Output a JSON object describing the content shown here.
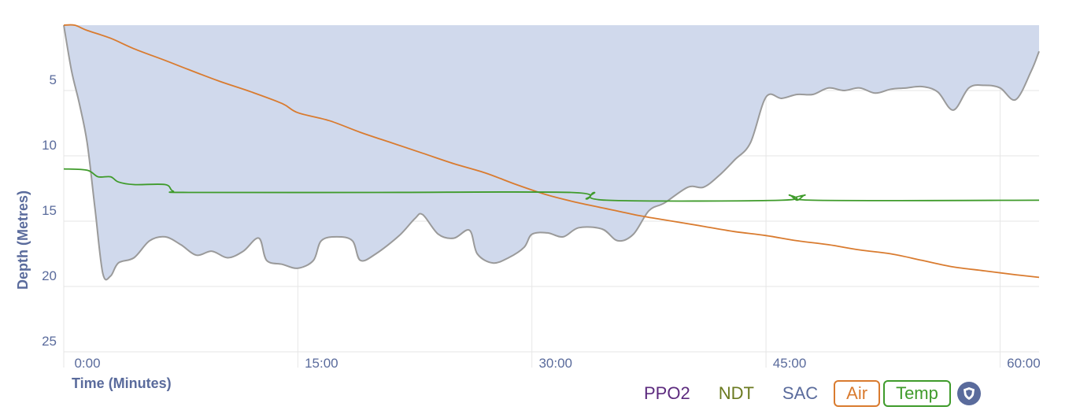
{
  "chart_data": {
    "type": "line",
    "ylabel": "Depth (Metres)",
    "xlabel": "Time (Minutes)",
    "xlim": [
      0,
      62.5
    ],
    "ylim": [
      0,
      25
    ],
    "y_inverted": true,
    "x_ticks": [
      {
        "value": 0,
        "label": "0:00"
      },
      {
        "value": 15,
        "label": "15:00"
      },
      {
        "value": 30,
        "label": "30:00"
      },
      {
        "value": 45,
        "label": "45:00"
      },
      {
        "value": 60,
        "label": "60:00"
      }
    ],
    "y_ticks": [
      5,
      10,
      15,
      20,
      25
    ],
    "grid": true,
    "depth_profile": {
      "fill_color": "#d0d9ec",
      "line_color": "#9a9a9a",
      "points": [
        [
          0,
          0
        ],
        [
          0.5,
          3.5
        ],
        [
          1,
          6
        ],
        [
          1.5,
          9
        ],
        [
          2,
          14
        ],
        [
          2.5,
          19
        ],
        [
          3,
          19.2
        ],
        [
          3.5,
          18.2
        ],
        [
          4.5,
          17.8
        ],
        [
          5.5,
          16.5
        ],
        [
          6.5,
          16.2
        ],
        [
          7.5,
          16.8
        ],
        [
          8.5,
          17.6
        ],
        [
          9.5,
          17.3
        ],
        [
          10.5,
          17.8
        ],
        [
          11.5,
          17.3
        ],
        [
          12.5,
          16.3
        ],
        [
          13,
          18
        ],
        [
          14,
          18.3
        ],
        [
          15,
          18.6
        ],
        [
          16,
          18
        ],
        [
          16.5,
          16.5
        ],
        [
          17.5,
          16.2
        ],
        [
          18.5,
          16.5
        ],
        [
          19,
          18
        ],
        [
          20,
          17.5
        ],
        [
          21.5,
          16.1
        ],
        [
          22.5,
          14.8
        ],
        [
          23,
          14.5
        ],
        [
          24,
          16
        ],
        [
          25,
          16.3
        ],
        [
          26,
          15.7
        ],
        [
          26.5,
          17.5
        ],
        [
          27.5,
          18.2
        ],
        [
          28.5,
          17.8
        ],
        [
          29.5,
          17
        ],
        [
          30,
          16
        ],
        [
          31,
          15.9
        ],
        [
          32,
          16.2
        ],
        [
          33,
          15.5
        ],
        [
          34.5,
          15.6
        ],
        [
          35.5,
          16.5
        ],
        [
          36.5,
          16
        ],
        [
          37.5,
          14.2
        ],
        [
          38.5,
          13.6
        ],
        [
          40,
          12.4
        ],
        [
          41,
          12.4
        ],
        [
          42,
          11.5
        ],
        [
          43,
          10.3
        ],
        [
          44,
          9
        ],
        [
          45,
          5.5
        ],
        [
          46,
          5.6
        ],
        [
          47,
          5.3
        ],
        [
          48,
          5.3
        ],
        [
          49,
          4.8
        ],
        [
          50,
          5
        ],
        [
          51,
          4.8
        ],
        [
          52,
          5.2
        ],
        [
          53,
          4.9
        ],
        [
          54,
          4.8
        ],
        [
          55,
          4.7
        ],
        [
          56,
          5.1
        ],
        [
          57,
          6.5
        ],
        [
          58,
          4.8
        ],
        [
          59,
          4.6
        ],
        [
          60,
          4.8
        ],
        [
          61,
          5.7
        ],
        [
          62,
          3.5
        ],
        [
          62.5,
          2
        ]
      ]
    },
    "series": [
      {
        "name": "Air",
        "color": "#d97b2f",
        "points": [
          [
            0,
            0
          ],
          [
            0.7,
            0
          ],
          [
            1.5,
            0.4
          ],
          [
            3,
            1
          ],
          [
            4.5,
            1.8
          ],
          [
            6.5,
            2.7
          ],
          [
            8,
            3.4
          ],
          [
            10,
            4.3
          ],
          [
            12,
            5.1
          ],
          [
            14,
            6
          ],
          [
            15,
            6.7
          ],
          [
            17,
            7.3
          ],
          [
            19,
            8.2
          ],
          [
            21,
            9
          ],
          [
            23,
            9.8
          ],
          [
            25,
            10.6
          ],
          [
            27,
            11.3
          ],
          [
            29,
            12.2
          ],
          [
            31,
            13
          ],
          [
            33,
            13.6
          ],
          [
            35,
            14.1
          ],
          [
            37,
            14.6
          ],
          [
            39,
            15
          ],
          [
            41,
            15.4
          ],
          [
            43,
            15.8
          ],
          [
            45,
            16.1
          ],
          [
            47,
            16.5
          ],
          [
            49,
            16.8
          ],
          [
            51,
            17.2
          ],
          [
            53,
            17.5
          ],
          [
            55,
            18
          ],
          [
            57,
            18.5
          ],
          [
            59,
            18.8
          ],
          [
            61,
            19.1
          ],
          [
            62.5,
            19.3
          ]
        ]
      },
      {
        "name": "Temp",
        "color": "#3f9b2b",
        "points": [
          [
            0,
            11
          ],
          [
            1.5,
            11.1
          ],
          [
            2.2,
            11.6
          ],
          [
            3,
            11.6
          ],
          [
            3.5,
            12
          ],
          [
            4.5,
            12.2
          ],
          [
            6.5,
            12.2
          ],
          [
            7,
            12.7
          ],
          [
            8,
            12.8
          ],
          [
            20,
            12.8
          ],
          [
            32.5,
            12.8
          ],
          [
            33.5,
            13.3
          ],
          [
            34,
            12.8
          ],
          [
            34.8,
            13.4
          ],
          [
            46,
            13.4
          ],
          [
            46.5,
            13
          ],
          [
            47,
            13.4
          ],
          [
            47.5,
            13
          ],
          [
            48,
            13.4
          ],
          [
            62.5,
            13.4
          ]
        ]
      }
    ],
    "legend": [
      {
        "label": "PPO2",
        "color": "#5c2a7e",
        "boxed": false
      },
      {
        "label": "NDT",
        "color": "#6b7a20",
        "boxed": false
      },
      {
        "label": "SAC",
        "color": "#5a6b9c",
        "boxed": false
      },
      {
        "label": "Air",
        "color": "#d97b2f",
        "boxed": true
      },
      {
        "label": "Temp",
        "color": "#3f9b2b",
        "boxed": true
      }
    ],
    "legend_position": "bottom-right"
  },
  "icons": {
    "settings": "shield-icon"
  }
}
